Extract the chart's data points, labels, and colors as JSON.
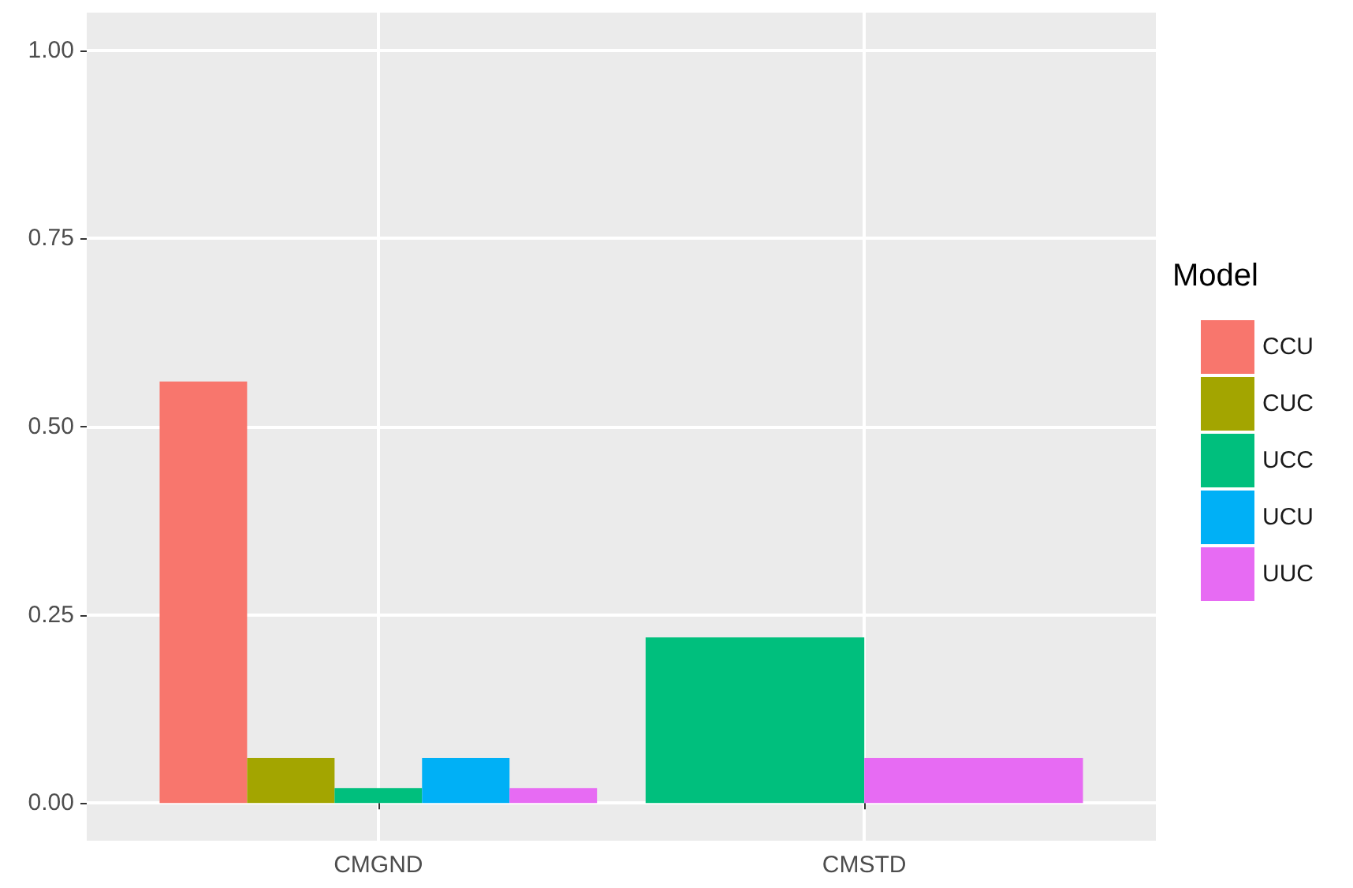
{
  "chart_data": {
    "type": "bar",
    "legend_title": "Model",
    "legend": "right",
    "grid": true,
    "categories": [
      "CMGND",
      "CMSTD"
    ],
    "series": [
      {
        "name": "CCU",
        "color": "#f8766d",
        "values": [
          0.56,
          null
        ]
      },
      {
        "name": "CUC",
        "color": "#a3a500",
        "values": [
          0.06,
          null
        ]
      },
      {
        "name": "UCC",
        "color": "#00bf7d",
        "values": [
          0.02,
          0.22
        ]
      },
      {
        "name": "UCU",
        "color": "#00b0f6",
        "values": [
          0.06,
          null
        ]
      },
      {
        "name": "UUC",
        "color": "#e76bf3",
        "values": [
          0.02,
          0.06
        ]
      }
    ],
    "ylim": [
      -0.05,
      1.05
    ],
    "yticks": [
      {
        "value": 0,
        "label": "0.00"
      },
      {
        "value": 0.25,
        "label": "0.25"
      },
      {
        "value": 0.5,
        "label": "0.50"
      },
      {
        "value": 0.75,
        "label": "0.75"
      },
      {
        "value": 1,
        "label": "1.00"
      }
    ]
  }
}
